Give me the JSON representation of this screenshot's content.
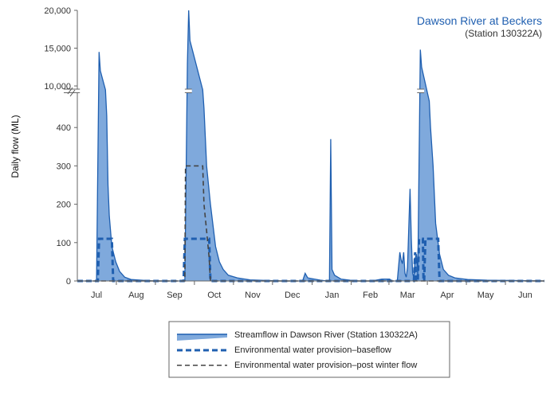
{
  "chart_data": {
    "type": "area",
    "title": "Dawson River at Beckers",
    "subtitle": "(Station 130322A)",
    "ylabel": "Daily flow (ML)",
    "xlabel": "",
    "y_axis_break": {
      "lower_range": [
        0,
        500
      ],
      "upper_range": [
        10000,
        20000
      ],
      "lower_ticks": [
        0,
        100,
        200,
        300,
        400
      ],
      "upper_ticks": [
        10000,
        15000,
        20000
      ]
    },
    "y_tick_labels": [
      "0",
      "100",
      "200",
      "300",
      "400",
      "10,000",
      "15,000",
      "20,000"
    ],
    "x_range_days": [
      0,
      365
    ],
    "months": [
      {
        "label": "Jul",
        "day": 15
      },
      {
        "label": "Aug",
        "day": 46
      },
      {
        "label": "Sep",
        "day": 76
      },
      {
        "label": "Oct",
        "day": 107
      },
      {
        "label": "Nov",
        "day": 137
      },
      {
        "label": "Dec",
        "day": 168
      },
      {
        "label": "Jan",
        "day": 199
      },
      {
        "label": "Feb",
        "day": 229
      },
      {
        "label": "Mar",
        "day": 258
      },
      {
        "label": "Apr",
        "day": 289
      },
      {
        "label": "May",
        "day": 319
      },
      {
        "label": "Jun",
        "day": 350
      }
    ],
    "series": [
      {
        "name": "Streamflow in Dawson River (Station 130322A)",
        "style": "area",
        "color": "#1f5fb0",
        "fill": "#7fa9dc",
        "points": [
          [
            0,
            0
          ],
          [
            15,
            0
          ],
          [
            17,
            14500
          ],
          [
            18,
            12000
          ],
          [
            22,
            9500
          ],
          [
            23,
            430
          ],
          [
            24,
            250
          ],
          [
            25,
            170
          ],
          [
            27,
            90
          ],
          [
            30,
            50
          ],
          [
            33,
            25
          ],
          [
            37,
            10
          ],
          [
            42,
            4
          ],
          [
            50,
            2
          ],
          [
            60,
            0
          ],
          [
            84,
            0
          ],
          [
            86,
            13000
          ],
          [
            87,
            20000
          ],
          [
            88,
            16000
          ],
          [
            98,
            9500
          ],
          [
            99,
            450
          ],
          [
            101,
            300
          ],
          [
            104,
            200
          ],
          [
            108,
            90
          ],
          [
            111,
            50
          ],
          [
            114,
            30
          ],
          [
            118,
            15
          ],
          [
            125,
            8
          ],
          [
            135,
            3
          ],
          [
            160,
            0
          ],
          [
            176,
            0
          ],
          [
            178,
            20
          ],
          [
            180,
            8
          ],
          [
            190,
            2
          ],
          [
            195,
            0
          ],
          [
            197,
            0
          ],
          [
            198,
            370
          ],
          [
            199,
            30
          ],
          [
            201,
            15
          ],
          [
            206,
            5
          ],
          [
            213,
            2
          ],
          [
            220,
            0
          ],
          [
            230,
            0
          ],
          [
            238,
            5
          ],
          [
            244,
            5
          ],
          [
            246,
            0
          ],
          [
            250,
            0
          ],
          [
            252,
            75
          ],
          [
            253,
            55
          ],
          [
            254,
            45
          ],
          [
            255,
            75
          ],
          [
            256,
            20
          ],
          [
            257,
            10
          ],
          [
            258,
            35
          ],
          [
            260,
            240
          ],
          [
            261,
            110
          ],
          [
            262,
            20
          ],
          [
            263,
            8
          ],
          [
            264,
            60
          ],
          [
            265,
            70
          ],
          [
            266,
            15
          ],
          [
            268,
            14800
          ],
          [
            269,
            12500
          ],
          [
            275,
            8000
          ],
          [
            276,
            400
          ],
          [
            278,
            300
          ],
          [
            280,
            150
          ],
          [
            283,
            70
          ],
          [
            286,
            30
          ],
          [
            290,
            15
          ],
          [
            295,
            8
          ],
          [
            305,
            4
          ],
          [
            320,
            2
          ],
          [
            365,
            0
          ]
        ]
      },
      {
        "name": "Environmental water provision–baseflow",
        "style": "dashed",
        "color": "#1f5fb0",
        "points": [
          [
            0,
            0
          ],
          [
            16,
            0
          ],
          [
            17,
            110
          ],
          [
            27,
            110
          ],
          [
            28,
            0
          ],
          [
            83,
            0
          ],
          [
            84,
            110
          ],
          [
            103,
            110
          ],
          [
            104,
            0
          ],
          [
            263,
            0
          ],
          [
            264,
            75
          ],
          [
            264.6,
            0
          ],
          [
            266,
            0
          ],
          [
            267,
            110
          ],
          [
            270,
            110
          ],
          [
            270.5,
            0
          ],
          [
            271,
            0
          ],
          [
            272,
            110
          ],
          [
            282,
            110
          ],
          [
            283,
            0
          ],
          [
            365,
            0
          ]
        ]
      },
      {
        "name": "Environmental water provision–post winter flow",
        "style": "dashed",
        "color": "#444444",
        "points": [
          [
            0,
            0
          ],
          [
            84,
            0
          ],
          [
            84.5,
            300
          ],
          [
            98,
            300
          ],
          [
            99,
            200
          ],
          [
            101,
            130
          ],
          [
            103,
            60
          ],
          [
            104,
            0
          ],
          [
            365,
            0
          ]
        ]
      }
    ],
    "legend": {
      "position": "bottom",
      "entries": [
        "Streamflow in Dawson River (Station 130322A)",
        "Environmental water provision–baseflow",
        "Environmental water provision–post winter flow"
      ]
    },
    "grid": false
  }
}
